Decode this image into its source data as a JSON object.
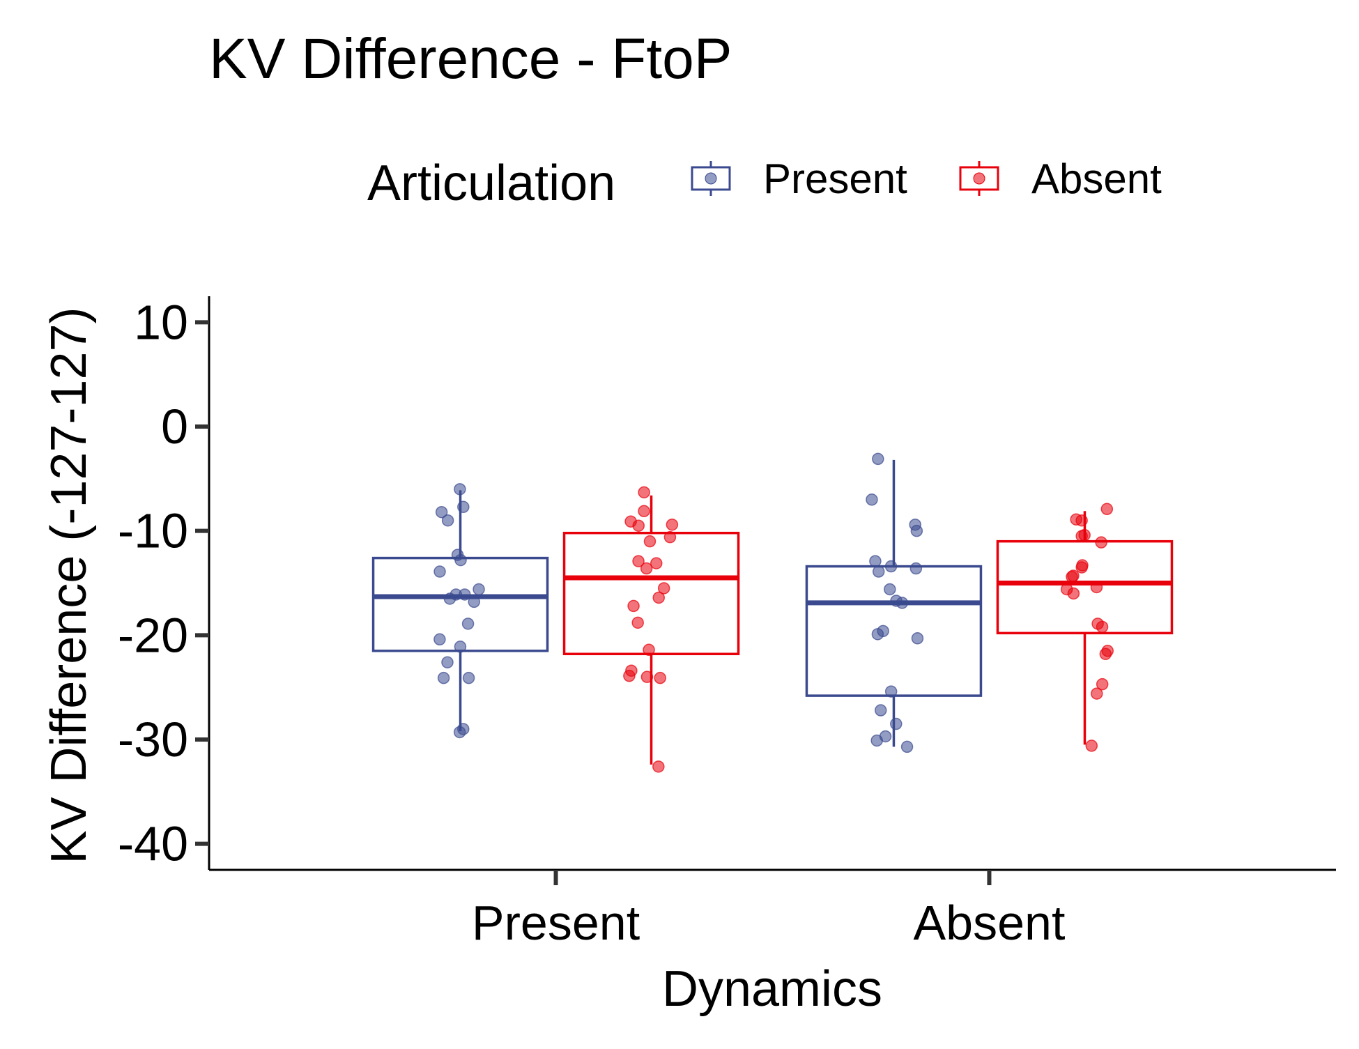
{
  "chart_data": {
    "type": "box",
    "title": "KV Difference - FtoP",
    "xlabel": "Dynamics",
    "ylabel": "KV Difference (-127-127)",
    "ylim": [
      -42.5,
      12.5
    ],
    "yticks": [
      10,
      0,
      -10,
      -20,
      -30,
      -40
    ],
    "grid": false,
    "legend": {
      "title": "Articulation",
      "placement": "top"
    },
    "categories": [
      "Present",
      "Absent"
    ],
    "series": [
      {
        "name": "Present",
        "color": "#3b4a8f",
        "boxes": [
          {
            "category": "Present",
            "q1": -21.5,
            "median": -16.3,
            "q3": -12.6,
            "whisker_low": -29.2,
            "whisker_high": -6.1
          },
          {
            "category": "Absent",
            "q1": -25.8,
            "median": -16.9,
            "q3": -13.4,
            "whisker_low": -30.7,
            "whisker_high": -3.2
          }
        ],
        "points": [
          {
            "category": "Present",
            "y": [
              -6.0,
              -7.7,
              -8.2,
              -9.0,
              -12.3,
              -12.8,
              -13.9,
              -15.6,
              -16.1,
              -16.1,
              -16.5,
              -16.8,
              -18.9,
              -20.4,
              -21.1,
              -22.6,
              -24.1,
              -24.1,
              -29.0,
              -29.3
            ]
          },
          {
            "category": "Absent",
            "y": [
              -3.1,
              -7.0,
              -9.4,
              -10.0,
              -12.9,
              -13.4,
              -13.6,
              -13.9,
              -15.6,
              -16.7,
              -16.9,
              -19.6,
              -19.9,
              -20.3,
              -25.4,
              -27.2,
              -28.5,
              -29.7,
              -30.1,
              -30.7
            ]
          }
        ]
      },
      {
        "name": "Absent",
        "color": "#e8000b",
        "boxes": [
          {
            "category": "Present",
            "q1": -21.8,
            "median": -14.5,
            "q3": -10.2,
            "whisker_low": -32.4,
            "whisker_high": -6.6
          },
          {
            "category": "Absent",
            "q1": -19.8,
            "median": -15.0,
            "q3": -11.0,
            "whisker_low": -30.5,
            "whisker_high": -8.1
          }
        ],
        "points": [
          {
            "category": "Present",
            "y": [
              -6.3,
              -8.1,
              -9.1,
              -9.4,
              -9.5,
              -10.6,
              -11.0,
              -12.9,
              -13.1,
              -13.6,
              -15.5,
              -16.4,
              -17.2,
              -18.8,
              -21.4,
              -23.4,
              -23.9,
              -24.0,
              -24.1,
              -32.6
            ]
          },
          {
            "category": "Absent",
            "y": [
              -7.9,
              -8.9,
              -9.0,
              -10.4,
              -10.5,
              -11.1,
              -13.3,
              -13.5,
              -14.3,
              -14.4,
              -15.4,
              -15.6,
              -16.0,
              -18.9,
              -19.2,
              -21.5,
              -21.8,
              -24.7,
              -25.6,
              -30.6
            ]
          }
        ]
      }
    ]
  }
}
